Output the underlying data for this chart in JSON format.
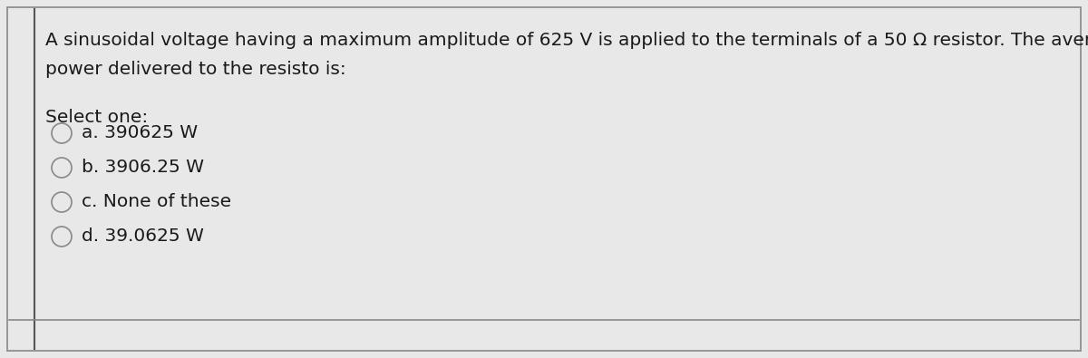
{
  "background_color": "#c8c8c8",
  "card_color": "#e8e8e8",
  "question_text_line1": "A sinusoidal voltage having a maximum amplitude of 625 V is applied to the terminals of a 50 Ω resistor. The average",
  "question_text_line2": "power delivered to the resisto is:",
  "select_label": "Select one:",
  "options": [
    "a. 390625 W",
    "b. 3906.25 W",
    "c. None of these",
    "d. 39.0625 W"
  ],
  "text_color": "#1a1a1a",
  "circle_edge_color": "#888888",
  "font_size_question": 14.5,
  "font_size_select": 14.5,
  "font_size_options": 14.5,
  "border_color": "#888888",
  "left_bar_color": "#555555"
}
